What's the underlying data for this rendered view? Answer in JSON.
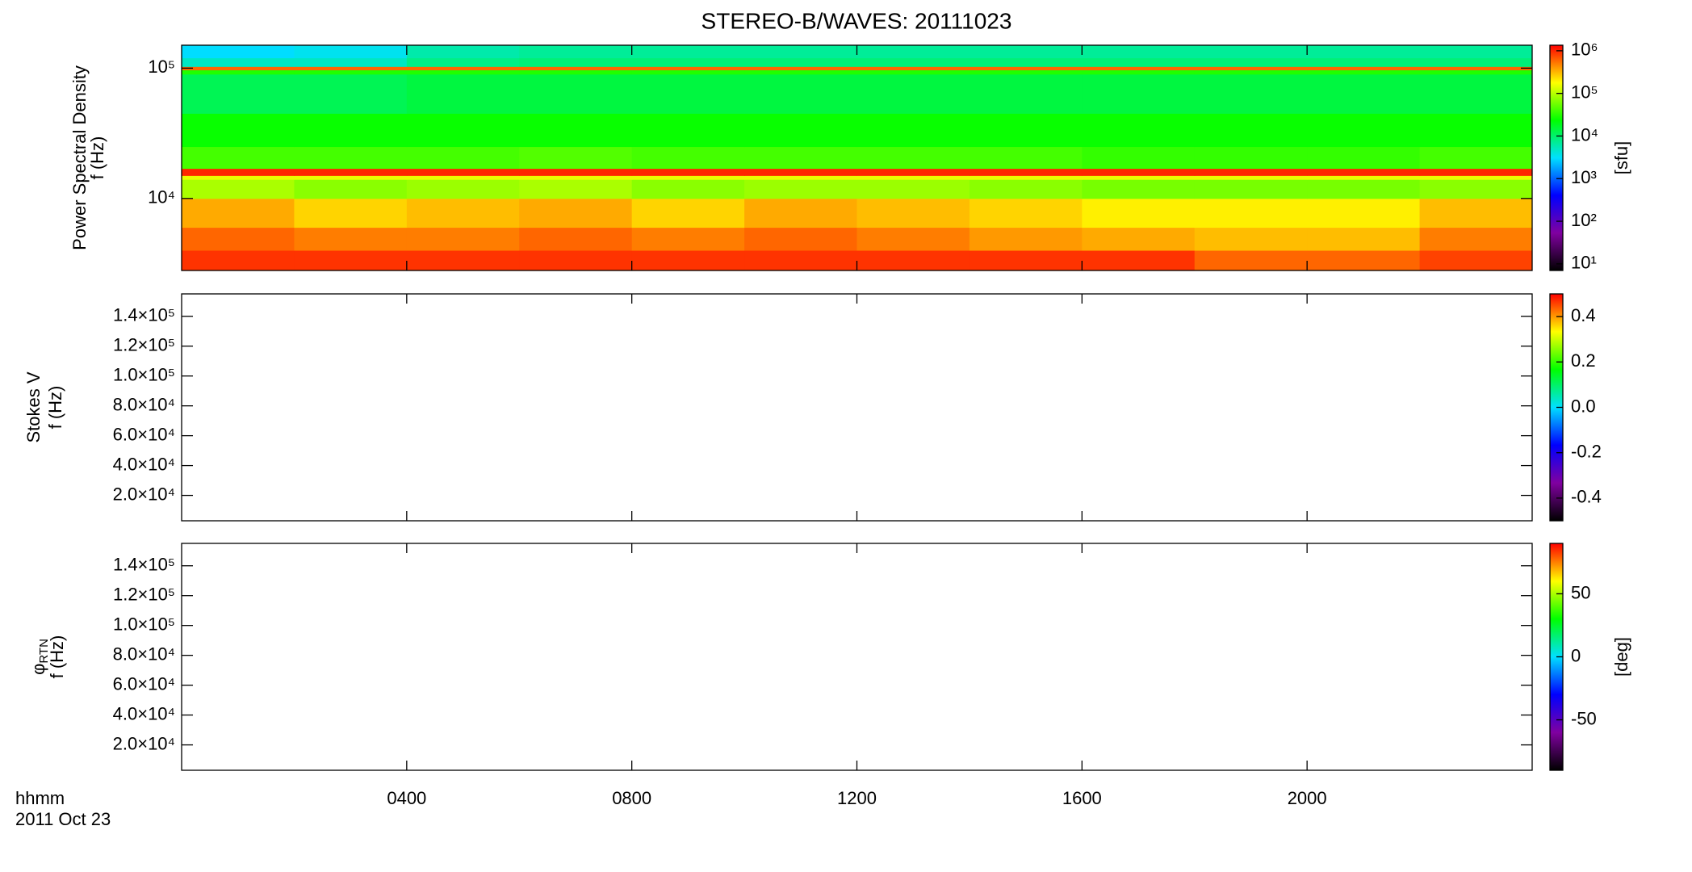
{
  "title": "STEREO-B/WAVES: 20111023",
  "time_label": "hhmm",
  "date_label": "2011 Oct 23",
  "colormap": [
    "#000000",
    "#8000a0",
    "#0000ff",
    "#00e0ff",
    "#00ff00",
    "#ffff00",
    "#ff0000"
  ],
  "chart_data": [
    {
      "type": "heatmap",
      "ylabel": [
        "Power Spectral Density",
        "f (Hz)"
      ],
      "ylog": true,
      "ylim": [
        2800,
        150000
      ],
      "yticks": [
        {
          "value": 10000,
          "label": "10⁴"
        },
        {
          "value": 100000,
          "label": "10⁵"
        }
      ],
      "xlim": [
        0,
        24
      ],
      "xticks": [
        4,
        8,
        12,
        16,
        20
      ],
      "x": [
        0,
        2,
        4,
        6,
        8,
        10,
        12,
        14,
        16,
        18,
        20,
        22,
        24
      ],
      "y": [
        2800,
        4000,
        6000,
        10000,
        14000,
        15000,
        17000,
        25000,
        45000,
        90000,
        97000,
        103000,
        120000,
        150000
      ],
      "z": [
        [
          900000,
          900000,
          900000,
          900000,
          900000,
          900000,
          900000,
          900000,
          900000,
          600000,
          600000,
          800000
        ],
        [
          600000,
          500000,
          500000,
          600000,
          500000,
          600000,
          500000,
          400000,
          350000,
          300000,
          300000,
          500000
        ],
        [
          350000,
          250000,
          300000,
          350000,
          250000,
          350000,
          300000,
          250000,
          200000,
          200000,
          200000,
          300000
        ],
        [
          90000,
          70000,
          80000,
          90000,
          70000,
          80000,
          80000,
          70000,
          60000,
          60000,
          60000,
          70000
        ],
        [
          150000,
          150000,
          150000,
          150000,
          150000,
          150000,
          150000,
          150000,
          150000,
          150000,
          150000,
          150000
        ],
        [
          1000000,
          1000000,
          1000000,
          1000000,
          1000000,
          1000000,
          1000000,
          1000000,
          1000000,
          1000000,
          1000000,
          1000000
        ],
        [
          40000,
          40000,
          40000,
          45000,
          40000,
          40000,
          40000,
          40000,
          35000,
          35000,
          35000,
          40000
        ],
        [
          25000,
          25000,
          25000,
          25000,
          25000,
          25000,
          25000,
          25000,
          25000,
          25000,
          25000,
          25000
        ],
        [
          12000,
          12000,
          14000,
          14000,
          14000,
          14000,
          14000,
          14000,
          14000,
          14000,
          14000,
          14000
        ],
        [
          30000,
          30000,
          30000,
          30000,
          30000,
          30000,
          30000,
          30000,
          30000,
          30000,
          30000,
          30000
        ],
        [
          600000,
          600000,
          600000,
          600000,
          600000,
          600000,
          600000,
          600000,
          600000,
          600000,
          600000,
          600000
        ],
        [
          5000,
          5000,
          8000,
          9000,
          9000,
          9000,
          9000,
          9000,
          9000,
          9000,
          9000,
          9000
        ],
        [
          3000,
          3500,
          6000,
          7000,
          7000,
          7000,
          7000,
          7000,
          7000,
          7000,
          7000,
          7000
        ]
      ],
      "zlog": true,
      "zlim": [
        7,
        1350000
      ],
      "zticks": [
        {
          "value": 10,
          "label": "10¹"
        },
        {
          "value": 100,
          "label": "10²"
        },
        {
          "value": 1000,
          "label": "10³"
        },
        {
          "value": 10000,
          "label": "10⁴"
        },
        {
          "value": 100000,
          "label": "10⁵"
        },
        {
          "value": 1000000,
          "label": "10⁶"
        }
      ],
      "zlabel": "[sfu]"
    },
    {
      "type": "heatmap",
      "ylabel": [
        "Stokes V",
        "f (Hz)"
      ],
      "ylim": [
        3000,
        155000
      ],
      "yticks": [
        {
          "value": 20000,
          "label": "2.0×10⁴"
        },
        {
          "value": 40000,
          "label": "4.0×10⁴"
        },
        {
          "value": 60000,
          "label": "6.0×10⁴"
        },
        {
          "value": 80000,
          "label": "8.0×10⁴"
        },
        {
          "value": 100000,
          "label": "1.0×10⁵"
        },
        {
          "value": 120000,
          "label": "1.2×10⁵"
        },
        {
          "value": 140000,
          "label": "1.4×10⁵"
        }
      ],
      "xlim": [
        0,
        24
      ],
      "xticks": [
        4,
        8,
        12,
        16,
        20
      ],
      "zlim": [
        -0.5,
        0.5
      ],
      "zticks": [
        -0.4,
        -0.2,
        {
          "value": 0,
          "label": "0.0"
        },
        0.2,
        0.4
      ]
    },
    {
      "type": "heatmap",
      "ylabel": [
        "φ",
        "f (Hz)"
      ],
      "ylabel_subscript": "RTN",
      "ylim": [
        3000,
        155000
      ],
      "yticks": [
        {
          "value": 20000,
          "label": "2.0×10⁴"
        },
        {
          "value": 40000,
          "label": "4.0×10⁴"
        },
        {
          "value": 60000,
          "label": "6.0×10⁴"
        },
        {
          "value": 80000,
          "label": "8.0×10⁴"
        },
        {
          "value": 100000,
          "label": "1.0×10⁵"
        },
        {
          "value": 120000,
          "label": "1.2×10⁵"
        },
        {
          "value": 140000,
          "label": "1.4×10⁵"
        }
      ],
      "xlim": [
        0,
        24
      ],
      "xticks": [
        {
          "value": 4,
          "label": "0400"
        },
        {
          "value": 8,
          "label": "0800"
        },
        {
          "value": 12,
          "label": "1200"
        },
        {
          "value": 16,
          "label": "1600"
        },
        {
          "value": 20,
          "label": "2000"
        }
      ],
      "zlim": [
        -90,
        90
      ],
      "zticks": [
        -50,
        0,
        50
      ],
      "zlabel": "[deg]"
    }
  ]
}
